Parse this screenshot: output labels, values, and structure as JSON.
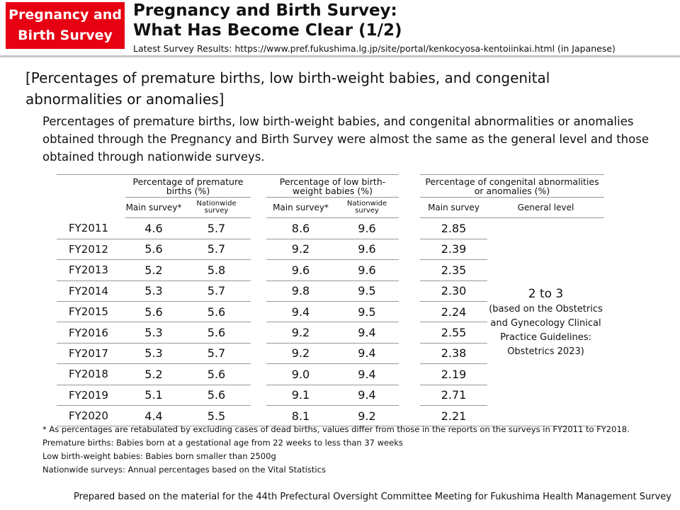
{
  "badge": {
    "line1": "Pregnancy and",
    "line2": "Birth Survey"
  },
  "header": {
    "title_line1": "Pregnancy and Birth Survey:",
    "title_line2": "What Has Become Clear (1/2)",
    "subtitle": "Latest Survey Results: https://www.pref.fukushima.lg.jp/site/portal/kenkocyosa-kentoiinkai.html (in Japanese)"
  },
  "heading": "[Percentages of premature births, low birth-weight babies, and congenital abnormalities or anomalies]",
  "intro": "Percentages of premature births, low birth-weight babies, and congenital abnormalities or anomalies obtained through the Pregnancy and Birth Survey were almost the same as the general level and those obtained through nationwide surveys.",
  "table": {
    "group1": "Percentage of premature births (%)",
    "group2": "Percentage of low birth-weight babies (%)",
    "group3": "Percentage of congenital abnormalities or anomalies (%)",
    "main_survey_star": "Main survey*",
    "nationwide_line1": "Nationwide",
    "nationwide_line2": "survey",
    "main_survey": "Main survey",
    "general_level": "General level",
    "general_value": "2 to 3",
    "general_note": "(based on the Obstetrics and Gynecology Clinical Practice Guidelines: Obstetrics 2023)",
    "rows": [
      {
        "year": "FY2011",
        "p_main": "4.6",
        "p_nat": "5.7",
        "l_main": "8.6",
        "l_nat": "9.6",
        "c_main": "2.85"
      },
      {
        "year": "FY2012",
        "p_main": "5.6",
        "p_nat": "5.7",
        "l_main": "9.2",
        "l_nat": "9.6",
        "c_main": "2.39"
      },
      {
        "year": "FY2013",
        "p_main": "5.2",
        "p_nat": "5.8",
        "l_main": "9.6",
        "l_nat": "9.6",
        "c_main": "2.35"
      },
      {
        "year": "FY2014",
        "p_main": "5.3",
        "p_nat": "5.7",
        "l_main": "9.8",
        "l_nat": "9.5",
        "c_main": "2.30"
      },
      {
        "year": "FY2015",
        "p_main": "5.6",
        "p_nat": "5.6",
        "l_main": "9.4",
        "l_nat": "9.5",
        "c_main": "2.24"
      },
      {
        "year": "FY2016",
        "p_main": "5.3",
        "p_nat": "5.6",
        "l_main": "9.2",
        "l_nat": "9.4",
        "c_main": "2.55"
      },
      {
        "year": "FY2017",
        "p_main": "5.3",
        "p_nat": "5.7",
        "l_main": "9.2",
        "l_nat": "9.4",
        "c_main": "2.38"
      },
      {
        "year": "FY2018",
        "p_main": "5.2",
        "p_nat": "5.6",
        "l_main": "9.0",
        "l_nat": "9.4",
        "c_main": "2.19"
      },
      {
        "year": "FY2019",
        "p_main": "5.1",
        "p_nat": "5.6",
        "l_main": "9.1",
        "l_nat": "9.4",
        "c_main": "2.71"
      },
      {
        "year": "FY2020",
        "p_main": "4.4",
        "p_nat": "5.5",
        "l_main": "8.1",
        "l_nat": "9.2",
        "c_main": "2.21"
      }
    ]
  },
  "notes": [
    "* As percentages are retabulated by excluding cases of dead births, values differ from those in the reports on the surveys in FY2011 to FY2018.",
    "Premature births: Babies born at a gestational age from 22 weeks to less than 37 weeks",
    "Low birth-weight babies: Babies born smaller than 2500g",
    "Nationwide surveys: Annual percentages based on the Vital Statistics"
  ],
  "footer": "Prepared based on the material for the 44th Prefectural Oversight Committee Meeting for Fukushima Health Management Survey"
}
